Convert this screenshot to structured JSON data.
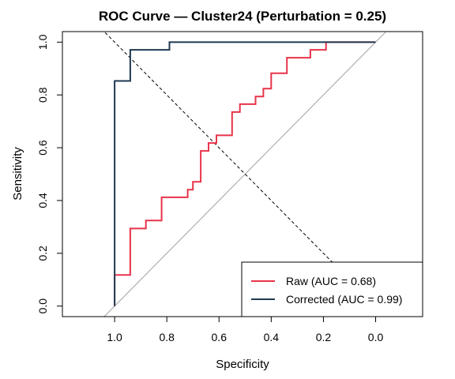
{
  "chart_data": {
    "type": "line",
    "title": "ROC Curve — Cluster24 (Perturbation = 0.25)",
    "xlabel": "Specificity",
    "ylabel": "Sensitivity",
    "x_reversed": true,
    "xlim": [
      1.2,
      -0.18
    ],
    "ylim": [
      -0.04,
      1.04
    ],
    "x_ticks": [
      1.0,
      0.8,
      0.6,
      0.4,
      0.2,
      0.0
    ],
    "x_tick_labels": [
      "1.0",
      "0.8",
      "0.6",
      "0.4",
      "0.2",
      "0.0"
    ],
    "y_ticks": [
      0.0,
      0.2,
      0.4,
      0.6,
      0.8,
      1.0
    ],
    "y_tick_labels": [
      "0.0",
      "0.2",
      "0.4",
      "0.6",
      "0.8",
      "1.0"
    ],
    "reference_line": {
      "color": "#a0a0a0",
      "description": "sensitivity = 1 - specificity"
    },
    "threshold_line": {
      "color": "#000000",
      "style": "dashed"
    },
    "legend_position": "bottom-right",
    "series": [
      {
        "name": "Raw (AUC = 0.68)",
        "color": "#e8344a",
        "points": [
          [
            1.0,
            0.0
          ],
          [
            1.0,
            0.118
          ],
          [
            0.94,
            0.118
          ],
          [
            0.94,
            0.294
          ],
          [
            0.88,
            0.294
          ],
          [
            0.88,
            0.324
          ],
          [
            0.82,
            0.324
          ],
          [
            0.82,
            0.412
          ],
          [
            0.72,
            0.412
          ],
          [
            0.72,
            0.441
          ],
          [
            0.7,
            0.441
          ],
          [
            0.7,
            0.471
          ],
          [
            0.67,
            0.471
          ],
          [
            0.67,
            0.588
          ],
          [
            0.64,
            0.588
          ],
          [
            0.64,
            0.618
          ],
          [
            0.61,
            0.618
          ],
          [
            0.61,
            0.647
          ],
          [
            0.55,
            0.647
          ],
          [
            0.55,
            0.735
          ],
          [
            0.52,
            0.735
          ],
          [
            0.52,
            0.765
          ],
          [
            0.46,
            0.765
          ],
          [
            0.46,
            0.794
          ],
          [
            0.43,
            0.794
          ],
          [
            0.43,
            0.824
          ],
          [
            0.4,
            0.824
          ],
          [
            0.4,
            0.882
          ],
          [
            0.34,
            0.882
          ],
          [
            0.34,
            0.941
          ],
          [
            0.25,
            0.941
          ],
          [
            0.25,
            0.971
          ],
          [
            0.19,
            0.971
          ],
          [
            0.19,
            1.0
          ],
          [
            0.0,
            1.0
          ]
        ]
      },
      {
        "name": "Corrected (AUC = 0.99)",
        "color": "#1f3a52",
        "points": [
          [
            1.0,
            0.0
          ],
          [
            1.0,
            0.853
          ],
          [
            0.94,
            0.853
          ],
          [
            0.94,
            0.971
          ],
          [
            0.79,
            0.971
          ],
          [
            0.79,
            1.0
          ],
          [
            0.0,
            1.0
          ]
        ]
      }
    ]
  }
}
